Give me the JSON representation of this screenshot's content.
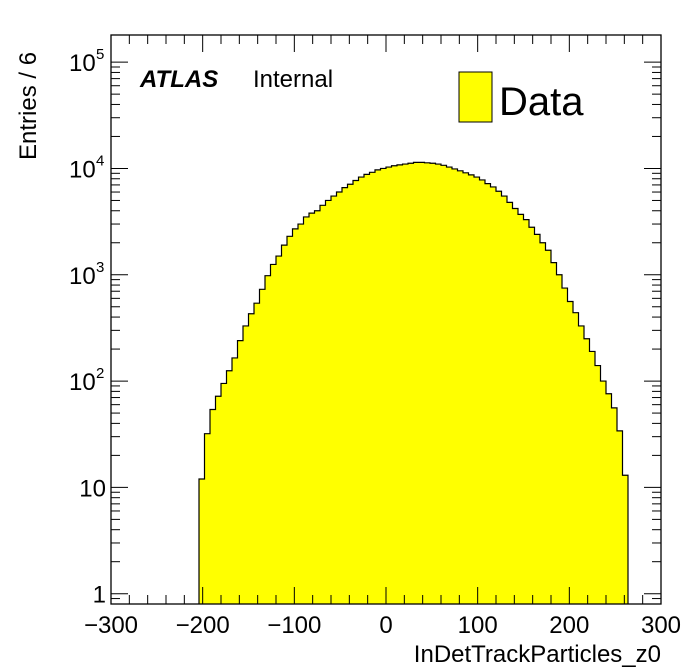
{
  "chart_data": {
    "type": "bar",
    "ylabel": "Entries / 6",
    "xlabel": "InDetTrackParticles_z0",
    "xlim": [
      -300,
      300
    ],
    "ylim": [
      0.8,
      180000
    ],
    "yscale": "log",
    "grid": false,
    "legend_placement": "top-right",
    "fill_color": "#ffff00",
    "line_color": "#000000",
    "xticks": [
      {
        "v": -300,
        "label": "−300"
      },
      {
        "v": -200,
        "label": "−200"
      },
      {
        "v": -100,
        "label": "−100"
      },
      {
        "v": 0,
        "label": "0"
      },
      {
        "v": 100,
        "label": "100"
      },
      {
        "v": 200,
        "label": "200"
      },
      {
        "v": 300,
        "label": "300"
      }
    ],
    "yticks": [
      {
        "v": 1,
        "base": "1",
        "exp": ""
      },
      {
        "v": 10,
        "base": "10",
        "exp": ""
      },
      {
        "v": 100,
        "base": "10",
        "exp": "2"
      },
      {
        "v": 1000,
        "base": "10",
        "exp": "3"
      },
      {
        "v": 10000,
        "base": "10",
        "exp": "4"
      },
      {
        "v": 100000,
        "base": "10",
        "exp": "5"
      }
    ],
    "annotation": {
      "bold": "ATLAS",
      "regular": "Internal"
    },
    "legend": [
      {
        "label": "Data",
        "color": "#ffff00"
      }
    ],
    "bin_width": 6,
    "bin_edges_start": -204,
    "series": [
      {
        "name": "Data",
        "values": [
          12,
          32,
          54,
          72,
          95,
          125,
          165,
          240,
          330,
          430,
          540,
          730,
          980,
          1250,
          1500,
          1900,
          2300,
          2700,
          3000,
          3500,
          3800,
          4000,
          4500,
          5000,
          5500,
          6000,
          6600,
          7100,
          7700,
          8300,
          8800,
          9200,
          9700,
          10000,
          10300,
          10600,
          10800,
          11000,
          11200,
          11400,
          11400,
          11300,
          11200,
          11000,
          10700,
          10300,
          9900,
          9500,
          9100,
          8700,
          8300,
          7800,
          7200,
          6700,
          6100,
          5500,
          4800,
          4200,
          3700,
          3300,
          2800,
          2400,
          2000,
          1700,
          1300,
          1000,
          750,
          560,
          440,
          330,
          250,
          190,
          140,
          100,
          76,
          56,
          34,
          13
        ]
      }
    ]
  }
}
